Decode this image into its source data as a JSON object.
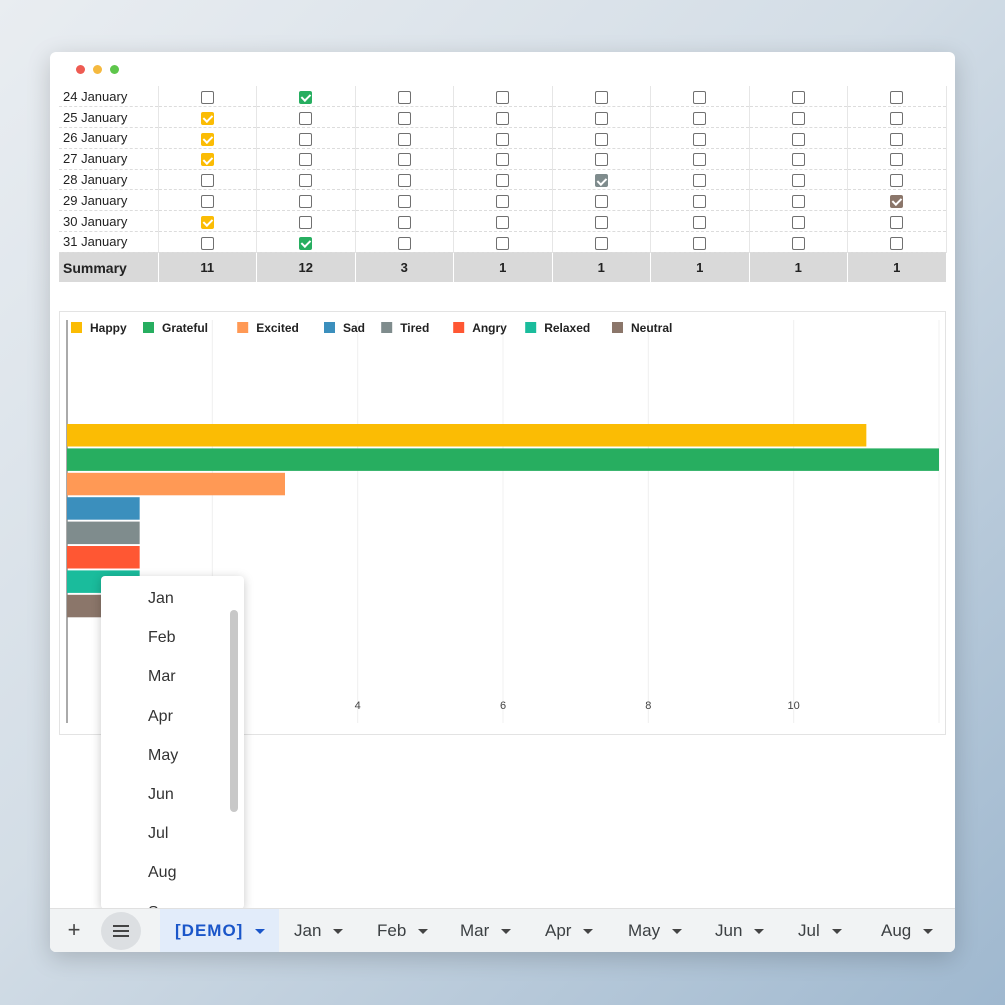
{
  "colors": {
    "Happy": "#fbbc04",
    "Grateful": "#27ae60",
    "Excited": "#ff9955",
    "Sad": "#3b8fbd",
    "Tired": "#7f8c8d",
    "Angry": "#ff5733",
    "Relaxed": "#1abc9c",
    "Neutral": "#8b766a"
  },
  "table": {
    "rows": [
      {
        "date": "24 January",
        "checked": [
          false,
          true,
          false,
          false,
          false,
          false,
          false,
          false
        ]
      },
      {
        "date": "25 January",
        "checked": [
          true,
          false,
          false,
          false,
          false,
          false,
          false,
          false
        ]
      },
      {
        "date": "26 January",
        "checked": [
          true,
          false,
          false,
          false,
          false,
          false,
          false,
          false
        ]
      },
      {
        "date": "27 January",
        "checked": [
          true,
          false,
          false,
          false,
          false,
          false,
          false,
          false
        ]
      },
      {
        "date": "28 January",
        "checked": [
          false,
          false,
          false,
          false,
          true,
          false,
          false,
          false
        ]
      },
      {
        "date": "29 January",
        "checked": [
          false,
          false,
          false,
          false,
          false,
          false,
          false,
          true
        ]
      },
      {
        "date": "30 January",
        "checked": [
          true,
          false,
          false,
          false,
          false,
          false,
          false,
          false
        ]
      },
      {
        "date": "31 January",
        "checked": [
          false,
          true,
          false,
          false,
          false,
          false,
          false,
          false
        ]
      }
    ],
    "summary": {
      "label": "Summary",
      "values": [
        "11",
        "12",
        "3",
        "1",
        "1",
        "1",
        "1",
        "1"
      ]
    }
  },
  "chart_data": {
    "type": "bar",
    "orientation": "horizontal",
    "categories": [
      ""
    ],
    "series": [
      {
        "name": "Happy",
        "values": [
          11
        ]
      },
      {
        "name": "Grateful",
        "values": [
          12
        ]
      },
      {
        "name": "Excited",
        "values": [
          3
        ]
      },
      {
        "name": "Sad",
        "values": [
          1
        ]
      },
      {
        "name": "Tired",
        "values": [
          1
        ]
      },
      {
        "name": "Angry",
        "values": [
          1
        ]
      },
      {
        "name": "Relaxed",
        "values": [
          1
        ]
      },
      {
        "name": "Neutral",
        "values": [
          1
        ]
      }
    ],
    "xticks": [
      "4",
      "6",
      "8",
      "10"
    ],
    "xlim": [
      0,
      12
    ],
    "legend": "top-left",
    "grid": true
  },
  "menu": {
    "items": [
      "Jan",
      "Feb",
      "Mar",
      "Apr",
      "May",
      "Jun",
      "Jul",
      "Aug",
      "Sep"
    ]
  },
  "tabs": {
    "add_label": "+",
    "items": [
      "[DEMO]",
      "Jan",
      "Feb",
      "Mar",
      "Apr",
      "May",
      "Jun",
      "Jul",
      "Aug"
    ]
  }
}
